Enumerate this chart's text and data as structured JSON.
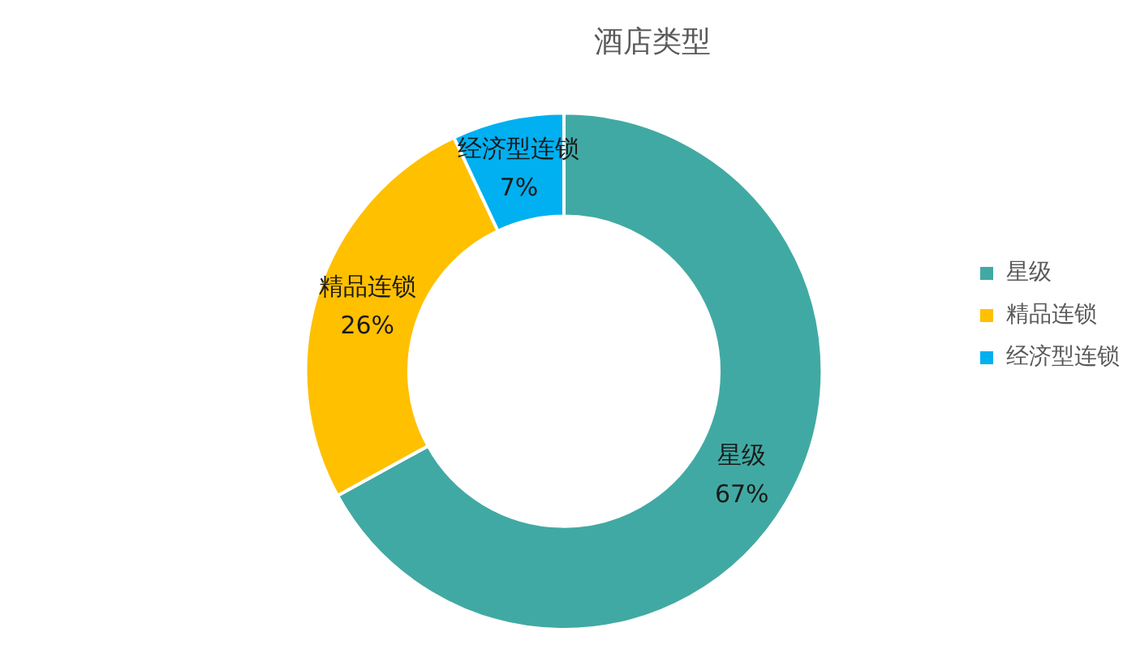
{
  "chart_data": {
    "type": "donut",
    "title": "酒店类型",
    "categories": [
      "星级",
      "精品连锁",
      "经济型连锁"
    ],
    "values": [
      67,
      26,
      7
    ],
    "colors": [
      "#41a9a3",
      "#ffc000",
      "#00b0f0"
    ],
    "value_labels": [
      "67%",
      "26%",
      "7%"
    ],
    "legend": "right"
  }
}
